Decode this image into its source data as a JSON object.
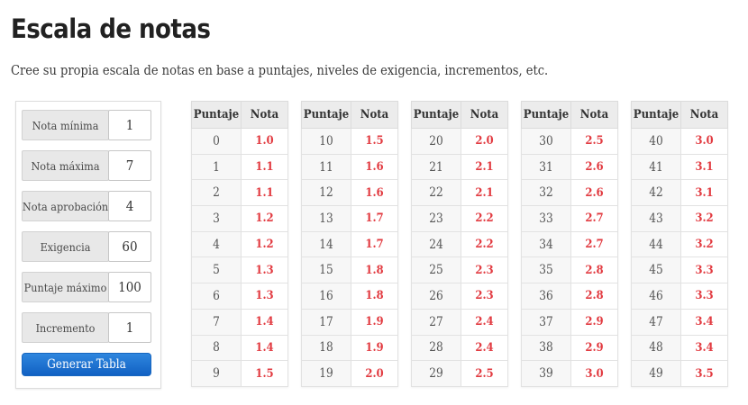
{
  "page": {
    "title": "Escala de notas",
    "subtitle": "Cree su propia escala de notas en base a puntajes, niveles de exigencia, incrementos, etc."
  },
  "form": {
    "fields": [
      {
        "label": "Nota mínima",
        "value": "1"
      },
      {
        "label": "Nota máxima",
        "value": "7"
      },
      {
        "label": "Nota aprobación",
        "value": "4"
      },
      {
        "label": "Exigencia",
        "value": "60"
      },
      {
        "label": "Puntaje máximo",
        "value": "100"
      },
      {
        "label": "Incremento",
        "value": "1"
      }
    ],
    "submit_label": "Generar Tabla"
  },
  "tables": {
    "headers": [
      "Puntaje",
      "Nota"
    ],
    "groups": [
      {
        "rows": [
          [
            0,
            "1.0"
          ],
          [
            1,
            "1.1"
          ],
          [
            2,
            "1.1"
          ],
          [
            3,
            "1.2"
          ],
          [
            4,
            "1.2"
          ],
          [
            5,
            "1.3"
          ],
          [
            6,
            "1.3"
          ],
          [
            7,
            "1.4"
          ],
          [
            8,
            "1.4"
          ],
          [
            9,
            "1.5"
          ]
        ]
      },
      {
        "rows": [
          [
            10,
            "1.5"
          ],
          [
            11,
            "1.6"
          ],
          [
            12,
            "1.6"
          ],
          [
            13,
            "1.7"
          ],
          [
            14,
            "1.7"
          ],
          [
            15,
            "1.8"
          ],
          [
            16,
            "1.8"
          ],
          [
            17,
            "1.9"
          ],
          [
            18,
            "1.9"
          ],
          [
            19,
            "2.0"
          ]
        ]
      },
      {
        "rows": [
          [
            20,
            "2.0"
          ],
          [
            21,
            "2.1"
          ],
          [
            22,
            "2.1"
          ],
          [
            23,
            "2.2"
          ],
          [
            24,
            "2.2"
          ],
          [
            25,
            "2.3"
          ],
          [
            26,
            "2.3"
          ],
          [
            27,
            "2.4"
          ],
          [
            28,
            "2.4"
          ],
          [
            29,
            "2.5"
          ]
        ]
      },
      {
        "rows": [
          [
            30,
            "2.5"
          ],
          [
            31,
            "2.6"
          ],
          [
            32,
            "2.6"
          ],
          [
            33,
            "2.7"
          ],
          [
            34,
            "2.7"
          ],
          [
            35,
            "2.8"
          ],
          [
            36,
            "2.8"
          ],
          [
            37,
            "2.9"
          ],
          [
            38,
            "2.9"
          ],
          [
            39,
            "3.0"
          ]
        ]
      },
      {
        "rows": [
          [
            40,
            "3.0"
          ],
          [
            41,
            "3.1"
          ],
          [
            42,
            "3.1"
          ],
          [
            43,
            "3.2"
          ],
          [
            44,
            "3.2"
          ],
          [
            45,
            "3.3"
          ],
          [
            46,
            "3.3"
          ],
          [
            47,
            "3.4"
          ],
          [
            48,
            "3.4"
          ],
          [
            49,
            "3.5"
          ]
        ]
      }
    ]
  },
  "colors": {
    "accent_red": "#e23b41",
    "button_blue_top": "#2e86de",
    "button_blue_bottom": "#1161c3",
    "header_gray": "#ececec",
    "row_gray": "#f7f7f7"
  },
  "layout": {
    "table_left_start": 212,
    "table_pitch": 122
  }
}
